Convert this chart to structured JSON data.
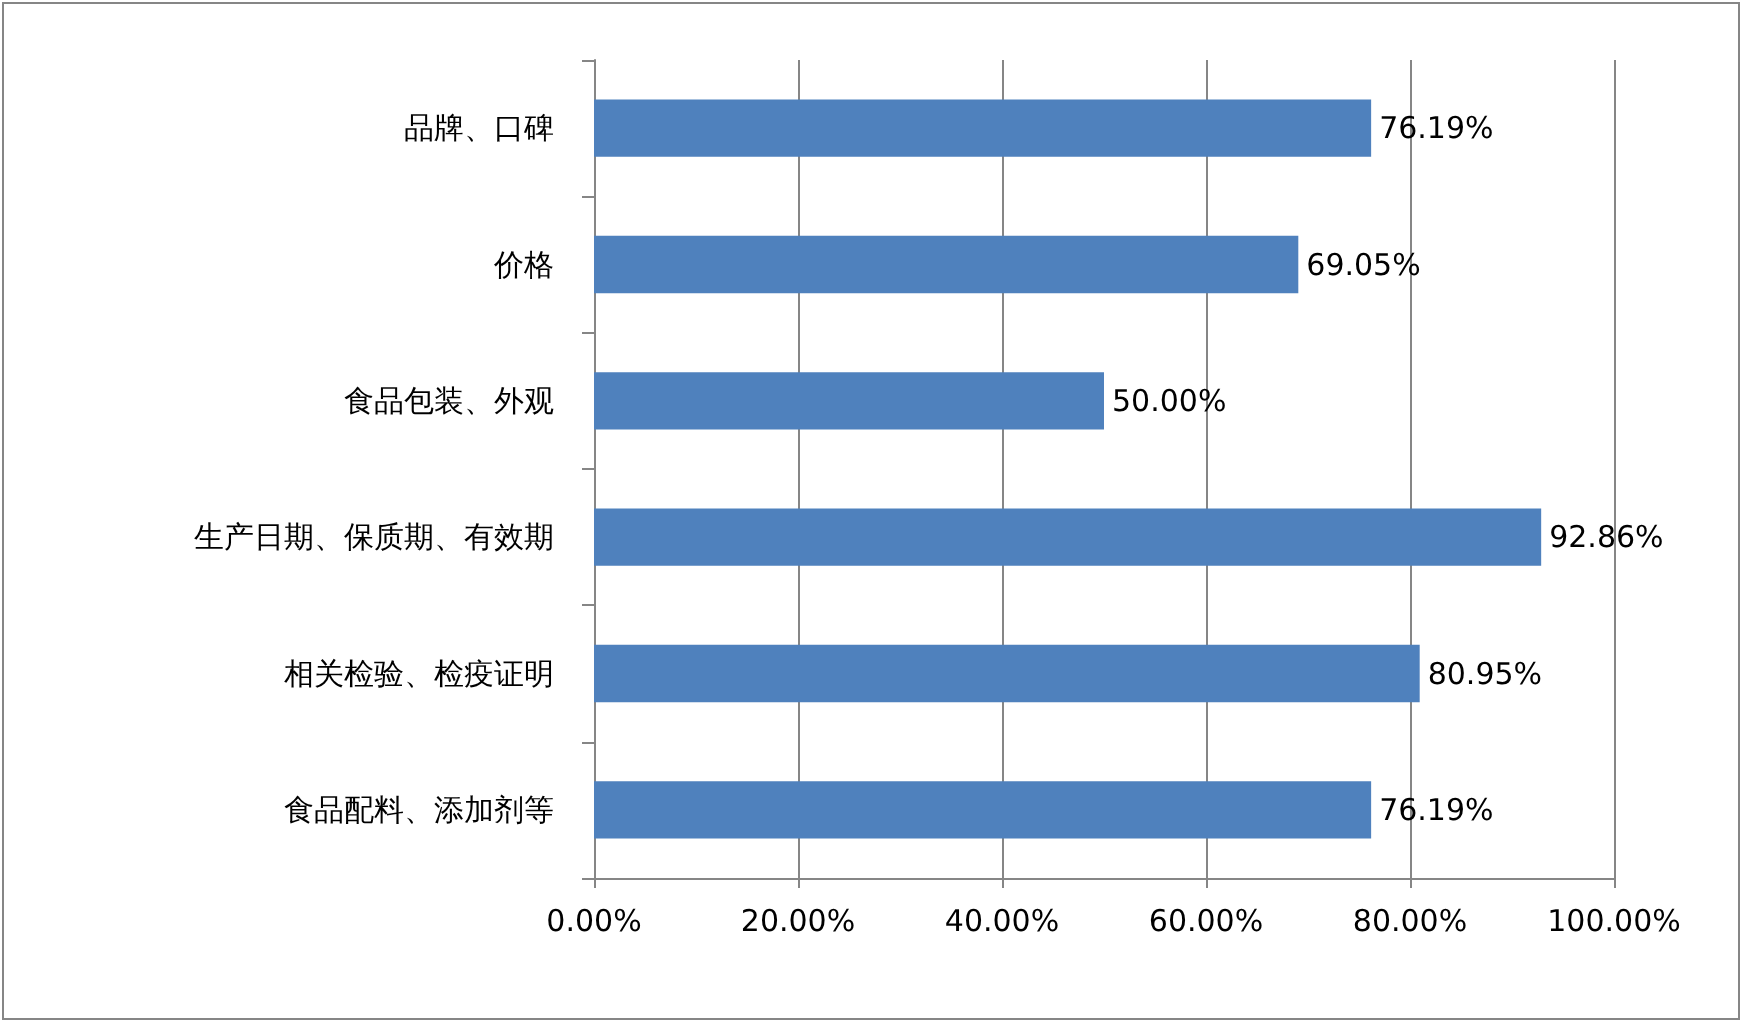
{
  "chart_data": {
    "type": "bar",
    "orientation": "horizontal",
    "categories": [
      "品牌、口碑",
      "价格",
      "食品包装、外观",
      "生产日期、保质期、有效期",
      "相关检验、检疫证明",
      "食品配料、添加剂等"
    ],
    "values": [
      76.19,
      69.05,
      50.0,
      92.86,
      80.95,
      76.19
    ],
    "value_labels": [
      "76.19%",
      "69.05%",
      "50.00%",
      "92.86%",
      "80.95%",
      "76.19%"
    ],
    "color": "#4f81bd",
    "xlim": [
      0,
      100
    ],
    "xticks": [
      {
        "value": 0,
        "label": "0.00%"
      },
      {
        "value": 20,
        "label": "20.00%"
      },
      {
        "value": 40,
        "label": "40.00%"
      },
      {
        "value": 60,
        "label": "60.00%"
      },
      {
        "value": 80,
        "label": "80.00%"
      },
      {
        "value": 100,
        "label": "100.00%"
      }
    ],
    "grid": "x"
  }
}
